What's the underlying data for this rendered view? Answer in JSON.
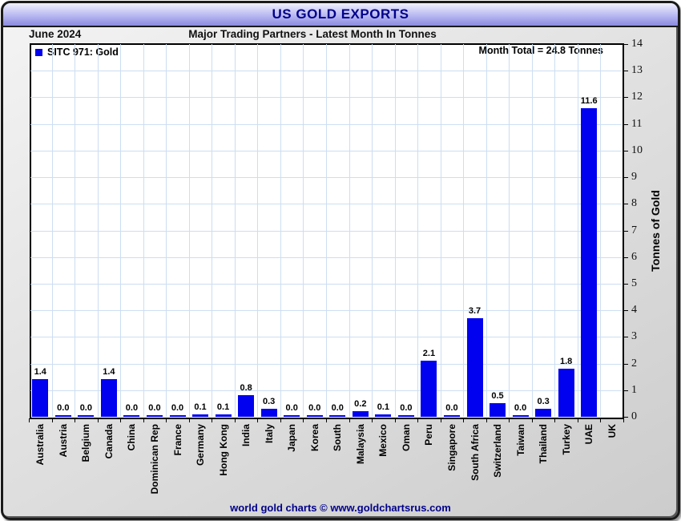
{
  "header": {
    "title": "US GOLD EXPORTS"
  },
  "subheader": {
    "date_label": "June 2024",
    "title": "Major Trading Partners - Latest Month In Tonnes"
  },
  "legend": {
    "label": "SITC 971: Gold",
    "swatch_color": "#0101ef"
  },
  "annotation": {
    "month_total": "Month Total = 24.8 Tonnes"
  },
  "footer": {
    "credit": "world gold charts © www.goldchartsrus.com"
  },
  "chart_data": {
    "type": "bar",
    "title": "US GOLD EXPORTS",
    "subtitle": "Major Trading Partners - Latest Month In Tonnes",
    "period": "June 2024",
    "month_total_tonnes": 24.8,
    "series_name": "SITC 971: Gold",
    "bar_color": "#0101ef",
    "grid": true,
    "legend_position": "top-left",
    "ylabel": "Tonnes of Gold",
    "ylim": [
      0,
      14
    ],
    "ytick_step": 1,
    "yticks": [
      0,
      1,
      2,
      3,
      4,
      5,
      6,
      7,
      8,
      9,
      10,
      11,
      12,
      13,
      14
    ],
    "categories": [
      "Australia",
      "Austria",
      "Belgium",
      "Canada",
      "China",
      "Dominican Rep",
      "France",
      "Germany",
      "Hong Kong",
      "India",
      "Italy",
      "Japan",
      "Korea",
      "South",
      "Malaysia",
      "Mexico",
      "Oman",
      "Peru",
      "Singapore",
      "South Africa",
      "Switzerland",
      "Taiwan",
      "Thailand",
      "Turkey",
      "UAE",
      "UK"
    ],
    "values": [
      1.4,
      0.0,
      0.0,
      1.4,
      0.0,
      0.0,
      0.0,
      0.1,
      0.1,
      0.8,
      0.3,
      0.0,
      0.0,
      0.0,
      0.2,
      0.1,
      0.0,
      2.1,
      0.0,
      3.7,
      0.5,
      0.0,
      0.3,
      1.8,
      11.6,
      null
    ],
    "value_labels": [
      "1.4",
      "0.0",
      "0.0",
      "1.4",
      "0.0",
      "0.0",
      "0.0",
      "0.1",
      "0.1",
      "0.8",
      "0.3",
      "0.0",
      "0.0",
      "0.0",
      "0.2",
      "0.1",
      "0.0",
      "2.1",
      "0.0",
      "3.7",
      "0.5",
      "0.0",
      "0.3",
      "1.8",
      "11.6",
      ""
    ]
  }
}
